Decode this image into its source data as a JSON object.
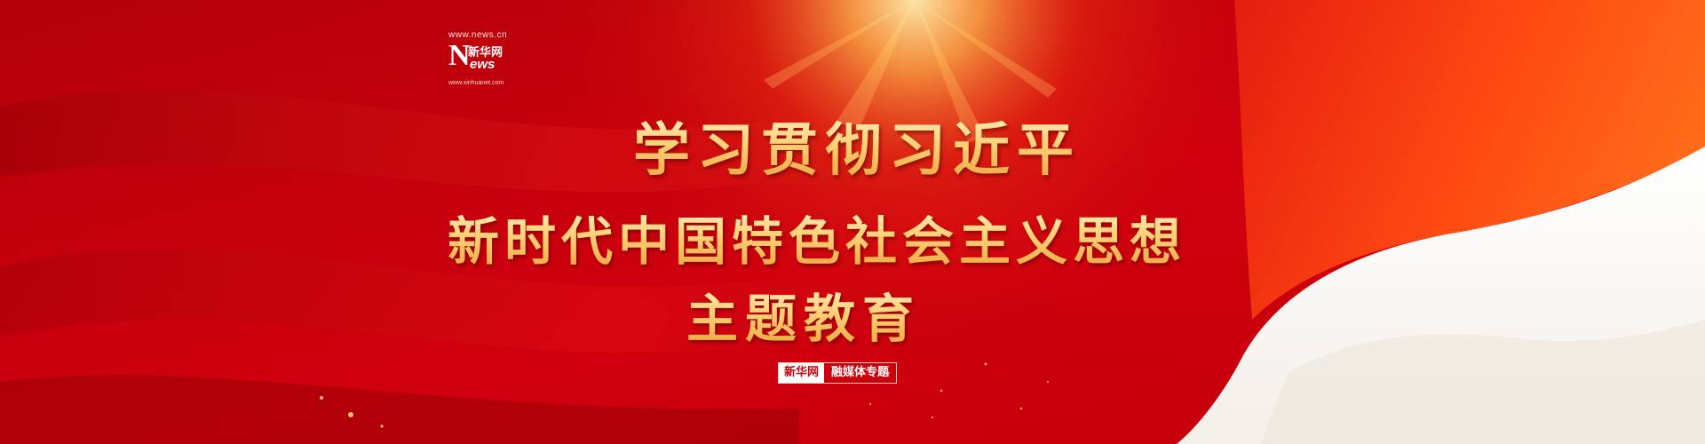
{
  "logo": {
    "url_top": "www.news.cn",
    "n_letter": "N",
    "cn_name": "新华网",
    "ews": "ews",
    "url_bottom": "www.xinhuanet.com"
  },
  "title": {
    "line1": "学习贯彻习近平",
    "line2": "新时代中国特色社会主义思想",
    "line3": "主题教育"
  },
  "tag": {
    "left": "新华网",
    "right": "融媒体专题"
  },
  "colors": {
    "background_red": "#c5000c",
    "flag_orange": "#ff5a14",
    "title_gold": "#ffd37a",
    "tag_red": "#c4000b"
  }
}
